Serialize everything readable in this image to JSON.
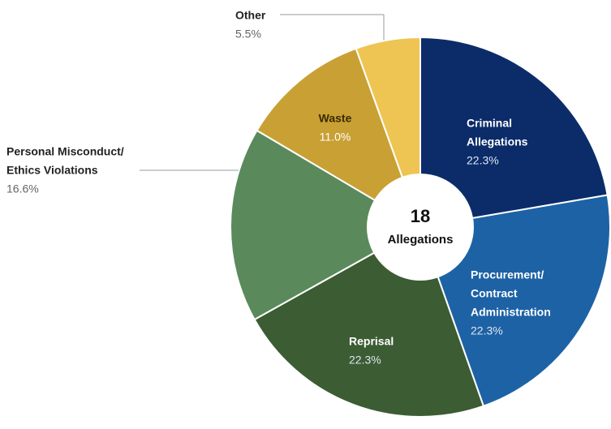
{
  "chart_data": {
    "type": "donut",
    "center_value": "18",
    "center_label": "Allegations",
    "categories": [
      [
        "Criminal",
        "Allegations"
      ],
      [
        "Procurement/",
        "Contract",
        "Administration"
      ],
      [
        "Reprisal"
      ],
      [
        "Personal Misconduct/",
        "Ethics Violations"
      ],
      [
        "Waste"
      ],
      [
        "Other"
      ]
    ],
    "values": [
      22.3,
      22.3,
      22.3,
      16.6,
      11.0,
      5.5
    ],
    "value_labels": [
      "22.3%",
      "22.3%",
      "22.3%",
      "16.6%",
      "11.0%",
      "5.5%"
    ],
    "colors": [
      "#0b2c69",
      "#1d62a5",
      "#3c5c33",
      "#5a8a5b",
      "#c9a034",
      "#eec452"
    ]
  }
}
